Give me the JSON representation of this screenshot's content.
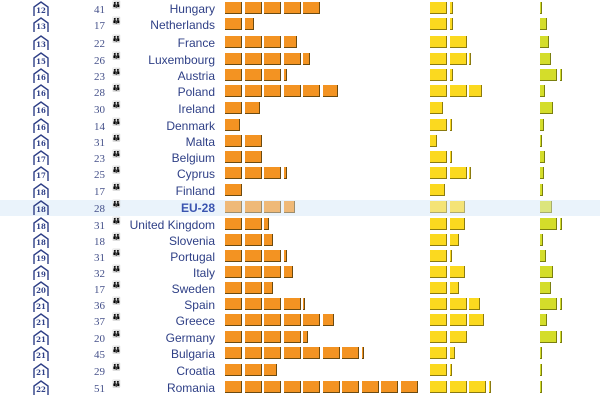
{
  "colors": {
    "orange": "#f39322",
    "yellow": "#fbd91f",
    "green": "#d4dd2a",
    "text": "#2e3f86",
    "highlight": "#eaf3fb"
  },
  "icons": {
    "rank": "house-icon",
    "count": "person-icon"
  },
  "chart_data": {
    "type": "bar",
    "orientation": "horizontal",
    "highlighted_category": "EU-28",
    "categories": [
      "Hungary",
      "Netherlands",
      "France",
      "Luxembourg",
      "Austria",
      "Poland",
      "Ireland",
      "Denmark",
      "Malta",
      "Belgium",
      "Cyprus",
      "Finland",
      "EU-28",
      "United Kingdom",
      "Slovenia",
      "Portugal",
      "Italy",
      "Sweden",
      "Spain",
      "Greece",
      "Germany",
      "Bulgaria",
      "Croatia",
      "Romania"
    ],
    "house_values": [
      "12",
      "13",
      "13",
      "15",
      "16",
      "16",
      "16",
      "16",
      "16",
      "17",
      "17",
      "18",
      "18",
      "18",
      "18",
      "19",
      "19",
      "20",
      "21",
      "21",
      "21",
      "21",
      "21",
      "22"
    ],
    "person_values": [
      "41",
      "17",
      "22",
      "26",
      "23",
      "28",
      "30",
      "14",
      "31",
      "23",
      "25",
      "17",
      "28",
      "31",
      "18",
      "31",
      "32",
      "17",
      "36",
      "37",
      "20",
      "45",
      "29",
      "51"
    ],
    "series": [
      {
        "color": "#f39322",
        "values": [
          5.0,
          1.6,
          3.8,
          4.5,
          3.3,
          5.9,
          1.9,
          0.9,
          2.0,
          2.0,
          3.3,
          1.0,
          3.7,
          2.4,
          2.6,
          3.3,
          3.6,
          2.6,
          4.1,
          5.7,
          4.4,
          7.2,
          2.8,
          10.0
        ]
      },
      {
        "color": "#fbd91f",
        "values": [
          1.3,
          1.3,
          2.0,
          2.1,
          1.3,
          2.8,
          0.8,
          1.2,
          0.5,
          1.2,
          2.1,
          0.9,
          1.9,
          1.9,
          1.6,
          1.2,
          1.9,
          1.6,
          2.7,
          2.9,
          2.0,
          1.4,
          1.2,
          3.1
        ]
      },
      {
        "color": "#d4dd2a",
        "values": [
          0.1,
          0.5,
          0.6,
          0.7,
          1.1,
          0.4,
          0.8,
          0.35,
          0.05,
          0.4,
          0.35,
          0.3,
          0.75,
          1.1,
          0.3,
          0.45,
          0.8,
          0.7,
          1.2,
          0.5,
          1.2,
          0.2,
          0.2,
          0.15
        ]
      }
    ]
  }
}
